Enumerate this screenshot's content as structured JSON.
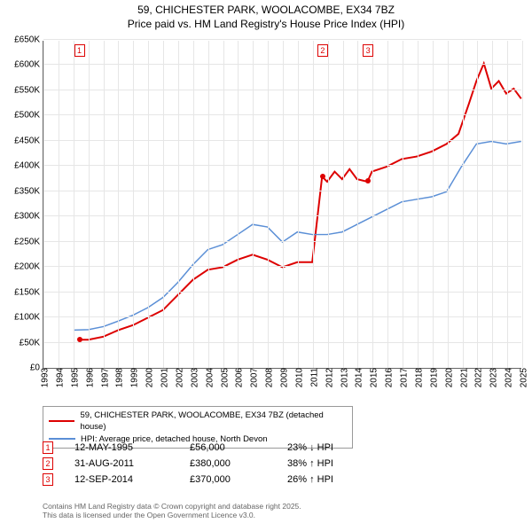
{
  "title_line1": "59, CHICHESTER PARK, WOOLACOMBE, EX34 7BZ",
  "title_line2": "Price paid vs. HM Land Registry's House Price Index (HPI)",
  "chart": {
    "type": "line",
    "background_color": "#ffffff",
    "grid_color": "#e6e6e6",
    "axis_color": "#666666",
    "ylim": [
      0,
      650
    ],
    "ytick_step": 50,
    "ytick_prefix": "£",
    "ytick_suffix": "K",
    "xlim": [
      1993,
      2025
    ],
    "xticks": [
      1993,
      1994,
      1995,
      1996,
      1997,
      1998,
      1999,
      2000,
      2001,
      2002,
      2003,
      2004,
      2005,
      2006,
      2007,
      2008,
      2009,
      2010,
      2011,
      2012,
      2013,
      2014,
      2015,
      2016,
      2017,
      2018,
      2019,
      2020,
      2021,
      2022,
      2023,
      2024,
      2025
    ],
    "series": [
      {
        "name": "59, CHICHESTER PARK, WOOLACOMBE, EX34 7BZ (detached house)",
        "color": "#dd0000",
        "line_width": 2,
        "points": [
          [
            1995.4,
            56
          ],
          [
            1996,
            56
          ],
          [
            1997,
            62
          ],
          [
            1998,
            75
          ],
          [
            1999,
            85
          ],
          [
            2000,
            100
          ],
          [
            2001,
            115
          ],
          [
            2002,
            145
          ],
          [
            2003,
            175
          ],
          [
            2004,
            195
          ],
          [
            2005,
            200
          ],
          [
            2006,
            215
          ],
          [
            2007,
            225
          ],
          [
            2008,
            215
          ],
          [
            2009,
            200
          ],
          [
            2010,
            210
          ],
          [
            2011,
            210
          ],
          [
            2011.66,
            380
          ],
          [
            2012,
            370
          ],
          [
            2012.5,
            390
          ],
          [
            2013,
            375
          ],
          [
            2013.5,
            395
          ],
          [
            2014,
            375
          ],
          [
            2014.7,
            370
          ],
          [
            2015,
            390
          ],
          [
            2016,
            400
          ],
          [
            2017,
            415
          ],
          [
            2018,
            420
          ],
          [
            2019,
            430
          ],
          [
            2020,
            445
          ],
          [
            2020.8,
            465
          ],
          [
            2021.5,
            525
          ],
          [
            2022,
            570
          ],
          [
            2022.5,
            605
          ],
          [
            2023,
            555
          ],
          [
            2023.5,
            570
          ],
          [
            2024,
            545
          ],
          [
            2024.5,
            555
          ],
          [
            2025,
            535
          ]
        ]
      },
      {
        "name": "HPI: Average price, detached house, North Devon",
        "color": "#5b8fd6",
        "line_width": 1.5,
        "points": [
          [
            1995,
            75
          ],
          [
            1996,
            76
          ],
          [
            1997,
            82
          ],
          [
            1998,
            93
          ],
          [
            1999,
            105
          ],
          [
            2000,
            120
          ],
          [
            2001,
            140
          ],
          [
            2002,
            170
          ],
          [
            2003,
            205
          ],
          [
            2004,
            235
          ],
          [
            2005,
            245
          ],
          [
            2006,
            265
          ],
          [
            2007,
            285
          ],
          [
            2008,
            280
          ],
          [
            2009,
            250
          ],
          [
            2010,
            270
          ],
          [
            2011,
            265
          ],
          [
            2012,
            265
          ],
          [
            2013,
            270
          ],
          [
            2014,
            285
          ],
          [
            2015,
            300
          ],
          [
            2016,
            315
          ],
          [
            2017,
            330
          ],
          [
            2018,
            335
          ],
          [
            2019,
            340
          ],
          [
            2020,
            350
          ],
          [
            2021,
            400
          ],
          [
            2022,
            445
          ],
          [
            2023,
            450
          ],
          [
            2024,
            445
          ],
          [
            2025,
            450
          ]
        ]
      }
    ],
    "markers": [
      {
        "n": "1",
        "x": 1995.4,
        "y": 56
      },
      {
        "n": "2",
        "x": 2011.66,
        "y": 380
      },
      {
        "n": "3",
        "x": 2014.7,
        "y": 370
      }
    ]
  },
  "legend": {
    "items": [
      {
        "color": "#dd0000",
        "label": "59, CHICHESTER PARK, WOOLACOMBE, EX34 7BZ (detached house)"
      },
      {
        "color": "#5b8fd6",
        "label": "HPI: Average price, detached house, North Devon"
      }
    ]
  },
  "transactions": [
    {
      "n": "1",
      "date": "12-MAY-1995",
      "price": "£56,000",
      "pct": "23% ↓ HPI"
    },
    {
      "n": "2",
      "date": "31-AUG-2011",
      "price": "£380,000",
      "pct": "38% ↑ HPI"
    },
    {
      "n": "3",
      "date": "12-SEP-2014",
      "price": "£370,000",
      "pct": "26% ↑ HPI"
    }
  ],
  "footer_line1": "Contains HM Land Registry data © Crown copyright and database right 2025.",
  "footer_line2": "This data is licensed under the Open Government Licence v3.0."
}
